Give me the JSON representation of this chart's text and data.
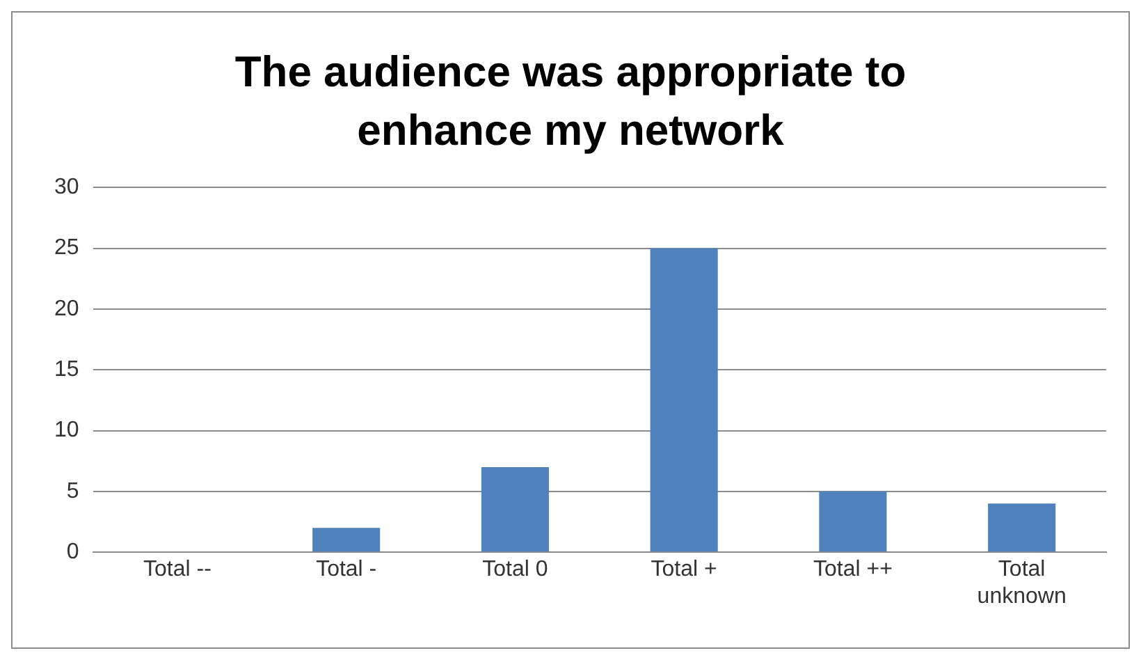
{
  "chart_data": {
    "type": "bar",
    "title": "The audience was appropriate to enhance my network",
    "categories": [
      "Total --",
      "Total -",
      "Total 0",
      "Total +",
      "Total ++",
      "Total unknown"
    ],
    "values": [
      0,
      2,
      7,
      25,
      5,
      4
    ],
    "color": "#4f81bd",
    "ylim": [
      0,
      30
    ],
    "yticks": [
      0,
      5,
      10,
      15,
      20,
      25,
      30
    ],
    "grid": "y",
    "legend": false
  }
}
